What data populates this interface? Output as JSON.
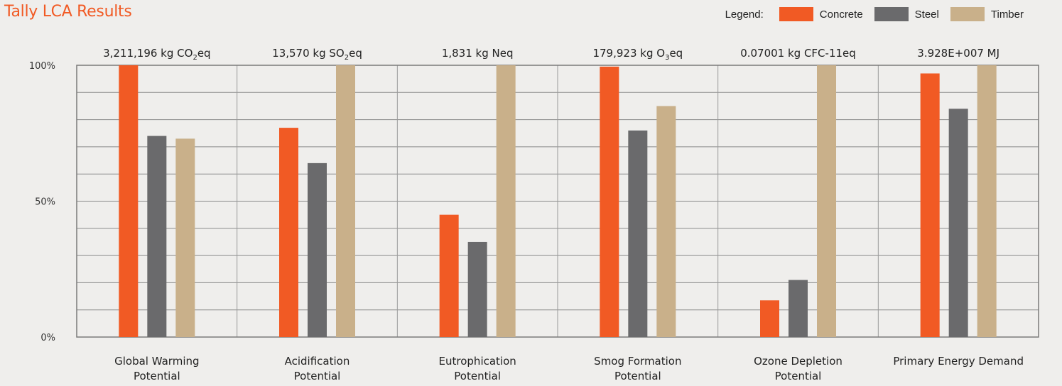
{
  "page": {
    "title": "Tally LCA Results"
  },
  "legend": {
    "title": "Legend:",
    "items": [
      {
        "label": "Concrete",
        "color": "#f15a24"
      },
      {
        "label": "Steel",
        "color": "#6a6a6c"
      },
      {
        "label": "Timber",
        "color": "#c9b08a"
      }
    ]
  },
  "chart_data": {
    "type": "bar",
    "title": "Tally LCA Results",
    "ylim": [
      0,
      100
    ],
    "y_ticks": [
      {
        "value": 0,
        "label": "0%"
      },
      {
        "value": 50,
        "label": "50%"
      },
      {
        "value": 100,
        "label": "100%"
      }
    ],
    "grid": true,
    "legend_position": "top-right",
    "categories": [
      {
        "lines": [
          "Global Warming",
          "Potential"
        ]
      },
      {
        "lines": [
          "Acidification",
          "Potential"
        ]
      },
      {
        "lines": [
          "Eutrophication",
          "Potential"
        ]
      },
      {
        "lines": [
          "Smog Formation",
          "Potential"
        ]
      },
      {
        "lines": [
          "Ozone Depletion",
          "Potential"
        ]
      },
      {
        "lines": [
          "Primary Energy Demand"
        ]
      }
    ],
    "totals": [
      {
        "pre": "3,211,196 kg CO",
        "sub": "2",
        "post": "eq"
      },
      {
        "pre": "13,570 kg SO",
        "sub": "2",
        "post": "eq"
      },
      {
        "pre": "1,831 kg Neq",
        "sub": "",
        "post": ""
      },
      {
        "pre": "179,923 kg O",
        "sub": "3",
        "post": "eq"
      },
      {
        "pre": "0.07001 kg CFC-11eq",
        "sub": "",
        "post": ""
      },
      {
        "pre": "3.928E+007 MJ",
        "sub": "",
        "post": ""
      }
    ],
    "series": [
      {
        "name": "Concrete",
        "color": "#f15a24",
        "values": [
          100,
          77,
          45,
          99.5,
          13.5,
          97
        ]
      },
      {
        "name": "Steel",
        "color": "#6a6a6c",
        "values": [
          74,
          64,
          35,
          76,
          21,
          84
        ]
      },
      {
        "name": "Timber",
        "color": "#c9b08a",
        "values": [
          73,
          100,
          100,
          85,
          100,
          100
        ]
      }
    ]
  }
}
